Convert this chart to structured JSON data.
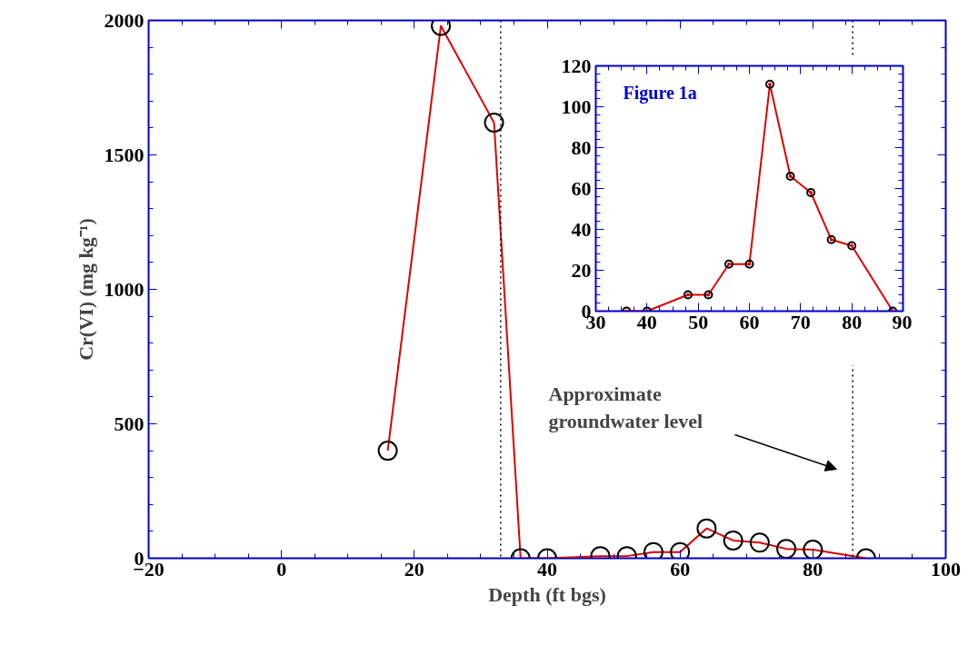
{
  "chart_data": [
    {
      "type": "line",
      "xlabel": "Depth (ft bgs)",
      "ylabel": "Cr(VI) (mg kg⁻¹)",
      "xlim": [
        -20,
        100
      ],
      "ylim": [
        0,
        2000
      ],
      "xticks": [
        -20,
        0,
        20,
        40,
        60,
        80,
        100
      ],
      "yticks": [
        0,
        500,
        1000,
        1500,
        2000
      ],
      "grid": false,
      "marker": "circle",
      "line_style": "solid",
      "series": [
        {
          "color": "#dd0000",
          "x": [
            16,
            24,
            32,
            36,
            40,
            48,
            52,
            56,
            60,
            64,
            68,
            72,
            76,
            80,
            88
          ],
          "values": [
            400,
            1980,
            1620,
            0,
            0,
            8,
            8,
            23,
            23,
            111,
            66,
            58,
            35,
            32,
            0
          ]
        }
      ],
      "ref_lines": [
        {
          "axis": "x",
          "value": 33,
          "line_style": "dotted",
          "color": "#000000"
        },
        {
          "axis": "x",
          "value": 86,
          "line_style": "dotted",
          "color": "#000000"
        }
      ],
      "annotations": [
        "Approximate groundwater level"
      ]
    },
    {
      "type": "line",
      "title": "Figure 1a",
      "xlim": [
        30,
        90
      ],
      "ylim": [
        0,
        120
      ],
      "xticks": [
        30,
        40,
        50,
        60,
        70,
        80,
        90
      ],
      "yticks": [
        0,
        20,
        40,
        60,
        80,
        100,
        120
      ],
      "grid": false,
      "marker": "circle",
      "line_style": "solid",
      "series": [
        {
          "color": "#dd0000",
          "x": [
            36,
            40,
            48,
            52,
            56,
            60,
            64,
            68,
            72,
            76,
            80,
            88
          ],
          "values": [
            0,
            0,
            8,
            8,
            23,
            23,
            111,
            66,
            58,
            35,
            32,
            0
          ]
        }
      ]
    }
  ]
}
